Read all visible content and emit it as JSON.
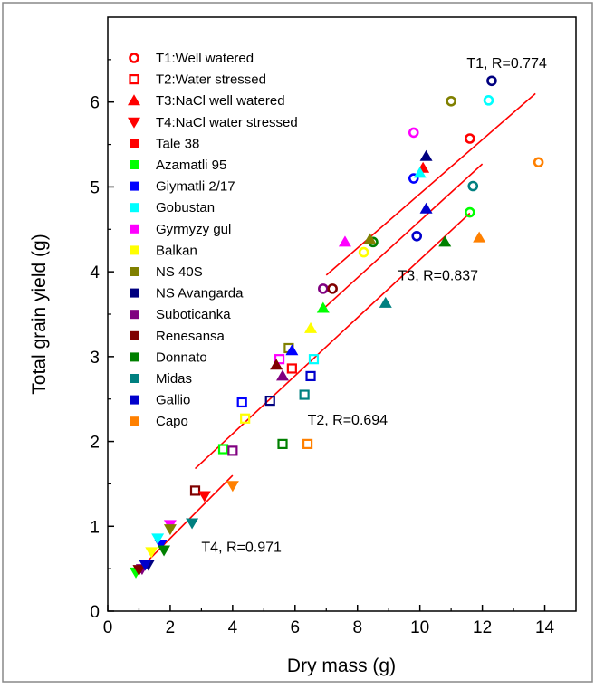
{
  "chart_data": {
    "type": "scatter",
    "xlabel": "Dry mass (g)",
    "ylabel": "Total grain yield (g)",
    "xlim": [
      0,
      15
    ],
    "ylim": [
      0,
      7
    ],
    "xticks": [
      "0",
      "2",
      "4",
      "6",
      "8",
      "10",
      "12",
      "14"
    ],
    "yticks": [
      "0",
      "1",
      "2",
      "3",
      "4",
      "5",
      "6"
    ],
    "grid": false,
    "legend_position": "top-left",
    "treatments": [
      {
        "id": "T1",
        "label": "T1:Well watered",
        "marker": "circle-open",
        "legend_color": "#ff0000"
      },
      {
        "id": "T2",
        "label": "T2:Water stressed",
        "marker": "square-open",
        "legend_color": "#ff0000"
      },
      {
        "id": "T3",
        "label": "T3:NaCl well watered",
        "marker": "triangle-up",
        "legend_color": "#ff0000"
      },
      {
        "id": "T4",
        "label": "T4:NaCl water stressed",
        "marker": "triangle-down",
        "legend_color": "#ff0000"
      }
    ],
    "cultivars": [
      {
        "name": "Tale 38",
        "label": " Tale 38",
        "color": "#ff0000"
      },
      {
        "name": "Azamatli 95",
        "label": "Azamatli 95",
        "color": "#00ff00"
      },
      {
        "name": "Giymatli 2/17",
        "label": "Giymatli 2/17",
        "color": "#0000ff"
      },
      {
        "name": "Gobustan",
        "label": "Gobustan",
        "color": "#00ffff"
      },
      {
        "name": "Gyrmyzy gul",
        "label": "Gyrmyzy gul",
        "color": "#ff00ff"
      },
      {
        "name": "Balkan",
        "label": "Balkan",
        "color": "#ffff00"
      },
      {
        "name": "NS 40S",
        "label": "NS 40S",
        "color": "#808000"
      },
      {
        "name": "NS Avangarda",
        "label": "NS Avangarda",
        "color": "#000080"
      },
      {
        "name": "Suboticanka",
        "label": "Suboticanka",
        "color": "#800080"
      },
      {
        "name": "Renesansa",
        "label": "Renesansa",
        "color": "#800000"
      },
      {
        "name": "Donnato",
        "label": "Donnato",
        "color": "#008000"
      },
      {
        "name": "Midas",
        "label": "Midas",
        "color": "#008080"
      },
      {
        "name": "Gallio",
        "label": "Gallio",
        "color": "#0000cc"
      },
      {
        "name": "Capo",
        "label": "Capo",
        "color": "#ff8000"
      }
    ],
    "series": [
      {
        "treatment": "T1",
        "points": [
          {
            "cultivar": "Tale 38",
            "x": 11.6,
            "y": 5.57
          },
          {
            "cultivar": "Azamatli 95",
            "x": 11.6,
            "y": 4.7
          },
          {
            "cultivar": "Giymatli 2/17",
            "x": 9.8,
            "y": 5.1
          },
          {
            "cultivar": "Gobustan",
            "x": 12.2,
            "y": 6.02
          },
          {
            "cultivar": "Gyrmyzy gul",
            "x": 9.8,
            "y": 5.64
          },
          {
            "cultivar": "Balkan",
            "x": 8.2,
            "y": 4.23
          },
          {
            "cultivar": "NS 40S",
            "x": 11.0,
            "y": 6.01
          },
          {
            "cultivar": "NS Avangarda",
            "x": 12.3,
            "y": 6.25
          },
          {
            "cultivar": "Suboticanka",
            "x": 6.9,
            "y": 3.8
          },
          {
            "cultivar": "Renesansa",
            "x": 7.2,
            "y": 3.8
          },
          {
            "cultivar": "Donnato",
            "x": 8.5,
            "y": 4.35
          },
          {
            "cultivar": "Midas",
            "x": 11.7,
            "y": 5.01
          },
          {
            "cultivar": "Gallio",
            "x": 9.9,
            "y": 4.42
          },
          {
            "cultivar": "Capo",
            "x": 13.8,
            "y": 5.29
          }
        ]
      },
      {
        "treatment": "T2",
        "points": [
          {
            "cultivar": "Tale 38",
            "x": 5.9,
            "y": 2.86
          },
          {
            "cultivar": "Azamatli 95",
            "x": 3.7,
            "y": 1.91
          },
          {
            "cultivar": "Giymatli 2/17",
            "x": 4.3,
            "y": 2.46
          },
          {
            "cultivar": "Gobustan",
            "x": 6.6,
            "y": 2.97
          },
          {
            "cultivar": "Gyrmyzy gul",
            "x": 5.5,
            "y": 2.97
          },
          {
            "cultivar": "Balkan",
            "x": 4.4,
            "y": 2.27
          },
          {
            "cultivar": "NS 40S",
            "x": 5.8,
            "y": 3.1
          },
          {
            "cultivar": "NS Avangarda",
            "x": 5.2,
            "y": 2.48
          },
          {
            "cultivar": "Suboticanka",
            "x": 4.0,
            "y": 1.89
          },
          {
            "cultivar": "Renesansa",
            "x": 2.8,
            "y": 1.42
          },
          {
            "cultivar": "Donnato",
            "x": 5.6,
            "y": 1.97
          },
          {
            "cultivar": "Midas",
            "x": 6.3,
            "y": 2.55
          },
          {
            "cultivar": "Gallio",
            "x": 6.5,
            "y": 2.77
          },
          {
            "cultivar": "Capo",
            "x": 6.4,
            "y": 1.97
          }
        ]
      },
      {
        "treatment": "T3",
        "points": [
          {
            "cultivar": "Tale 38",
            "x": 10.1,
            "y": 5.22
          },
          {
            "cultivar": "Azamatli 95",
            "x": 6.9,
            "y": 3.57
          },
          {
            "cultivar": "Giymatli 2/17",
            "x": 5.9,
            "y": 3.07
          },
          {
            "cultivar": "Gobustan",
            "x": 10.0,
            "y": 5.16
          },
          {
            "cultivar": "Gyrmyzy gul",
            "x": 7.6,
            "y": 4.35
          },
          {
            "cultivar": "Balkan",
            "x": 6.5,
            "y": 3.33
          },
          {
            "cultivar": "NS 40S",
            "x": 8.4,
            "y": 4.38
          },
          {
            "cultivar": "NS Avangarda",
            "x": 10.2,
            "y": 5.36
          },
          {
            "cultivar": "Suboticanka",
            "x": 5.6,
            "y": 2.77
          },
          {
            "cultivar": "Renesansa",
            "x": 5.4,
            "y": 2.9
          },
          {
            "cultivar": "Donnato",
            "x": 10.8,
            "y": 4.35
          },
          {
            "cultivar": "Midas",
            "x": 8.9,
            "y": 3.63
          },
          {
            "cultivar": "Gallio",
            "x": 10.2,
            "y": 4.74
          },
          {
            "cultivar": "Capo",
            "x": 11.9,
            "y": 4.4
          }
        ]
      },
      {
        "treatment": "T4",
        "points": [
          {
            "cultivar": "Tale 38",
            "x": 3.1,
            "y": 1.36
          },
          {
            "cultivar": "Azamatli 95",
            "x": 0.9,
            "y": 0.46
          },
          {
            "cultivar": "Giymatli 2/17",
            "x": 1.7,
            "y": 0.79
          },
          {
            "cultivar": "Gobustan",
            "x": 1.6,
            "y": 0.86
          },
          {
            "cultivar": "Gyrmyzy gul",
            "x": 2.0,
            "y": 1.02
          },
          {
            "cultivar": "Balkan",
            "x": 1.4,
            "y": 0.7
          },
          {
            "cultivar": "NS 40S",
            "x": 2.0,
            "y": 0.97
          },
          {
            "cultivar": "NS Avangarda",
            "x": 1.3,
            "y": 0.55
          },
          {
            "cultivar": "Suboticanka",
            "x": 1.1,
            "y": 0.5
          },
          {
            "cultivar": "Renesansa",
            "x": 1.0,
            "y": 0.49
          },
          {
            "cultivar": "Donnato",
            "x": 1.8,
            "y": 0.72
          },
          {
            "cultivar": "Midas",
            "x": 2.7,
            "y": 1.04
          },
          {
            "cultivar": "Gallio",
            "x": 1.2,
            "y": 0.55
          },
          {
            "cultivar": "Capo",
            "x": 4.0,
            "y": 1.48
          }
        ]
      }
    ],
    "fit_lines": [
      {
        "treatment": "T1",
        "x": [
          7.0,
          13.7
        ],
        "y": [
          3.96,
          6.1
        ],
        "color": "#ff0000"
      },
      {
        "treatment": "T3",
        "x": [
          6.9,
          12.0
        ],
        "y": [
          3.56,
          5.27
        ],
        "color": "#ff0000"
      },
      {
        "treatment": "T2",
        "x": [
          2.8,
          11.6
        ],
        "y": [
          1.68,
          4.69
        ],
        "color": "#ff0000"
      },
      {
        "treatment": "T4",
        "x": [
          0.9,
          4.0
        ],
        "y": [
          0.45,
          1.6
        ],
        "color": "#ff0000"
      }
    ],
    "annotations": [
      {
        "text": "T1, R=0.774",
        "x": 11.5,
        "y": 6.4
      },
      {
        "text": "T3, R=0.837",
        "x": 9.3,
        "y": 3.9
      },
      {
        "text": "T2, R=0.694",
        "x": 6.4,
        "y": 2.2
      },
      {
        "text": "T4, R=0.971",
        "x": 3.0,
        "y": 0.7
      }
    ]
  }
}
